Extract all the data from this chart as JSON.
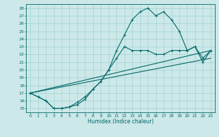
{
  "bg_color": "#cce8e8",
  "grid_color": "#99cccc",
  "line_color": "#006666",
  "xlabel": "Humidex (Indice chaleur)",
  "ylim": [
    14.5,
    28.5
  ],
  "xlim": [
    -0.5,
    23.5
  ],
  "yticks": [
    15,
    16,
    17,
    18,
    19,
    20,
    21,
    22,
    23,
    24,
    25,
    26,
    27,
    28
  ],
  "xticks": [
    0,
    1,
    2,
    3,
    4,
    5,
    6,
    7,
    8,
    9,
    10,
    11,
    12,
    13,
    14,
    15,
    16,
    17,
    18,
    19,
    20,
    21,
    22,
    23
  ],
  "series1_x": [
    0,
    1,
    2,
    3,
    4,
    5,
    6,
    7,
    8,
    9,
    10,
    11,
    12,
    13,
    14,
    15,
    16,
    17,
    18,
    19,
    20,
    21,
    22,
    23
  ],
  "series1_y": [
    17.0,
    16.5,
    16.0,
    15.0,
    15.0,
    15.2,
    15.5,
    16.2,
    17.5,
    18.5,
    20.0,
    22.5,
    24.5,
    26.5,
    27.5,
    28.0,
    27.0,
    27.5,
    26.5,
    25.0,
    22.5,
    23.0,
    21.0,
    22.5
  ],
  "series2_x": [
    0,
    1,
    2,
    3,
    4,
    5,
    6,
    7,
    8,
    9,
    10,
    11,
    12,
    13,
    14,
    15,
    16,
    17,
    18,
    19,
    20,
    21,
    22,
    23
  ],
  "series2_y": [
    17.0,
    16.5,
    16.0,
    15.0,
    15.0,
    15.2,
    15.8,
    16.5,
    17.5,
    18.5,
    20.0,
    21.5,
    23.0,
    22.5,
    22.5,
    22.5,
    22.0,
    22.0,
    22.5,
    22.5,
    22.5,
    23.0,
    21.5,
    22.5
  ],
  "series3_x": [
    0,
    23
  ],
  "series3_y": [
    17.0,
    22.5
  ],
  "series4_x": [
    0,
    23
  ],
  "series4_y": [
    17.0,
    21.5
  ]
}
